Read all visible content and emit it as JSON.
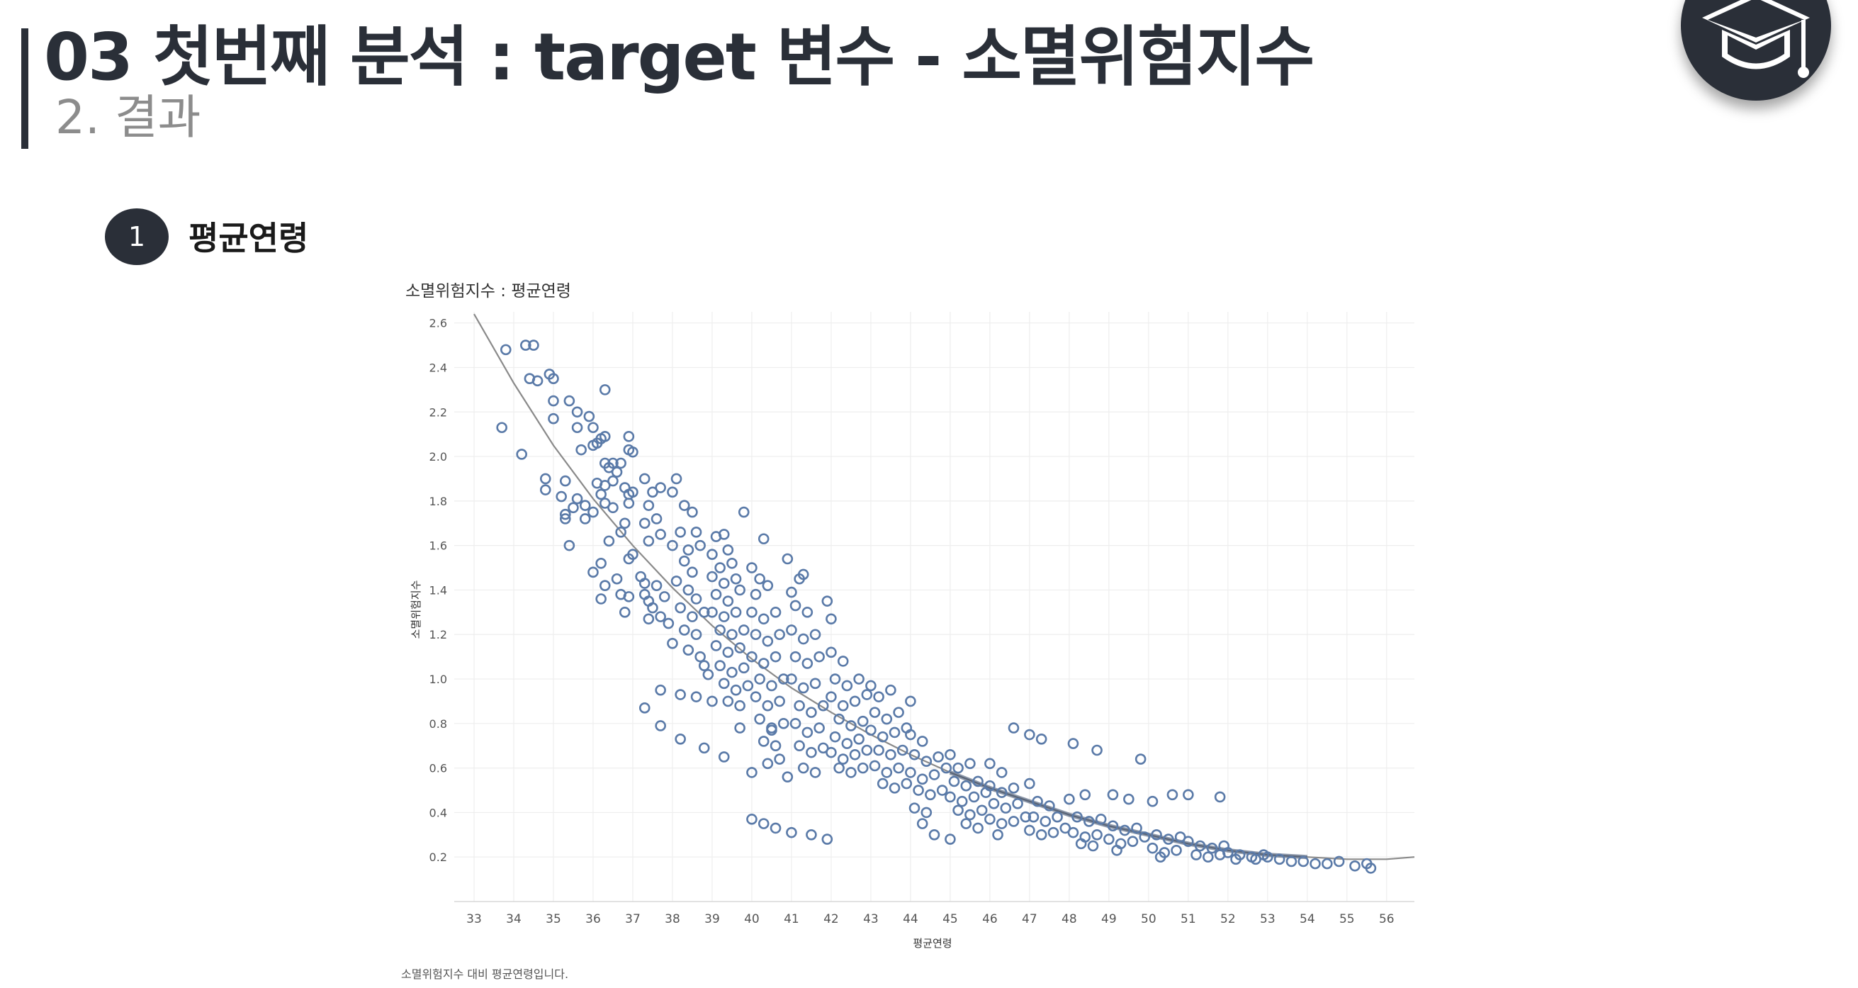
{
  "header": {
    "title": "03 첫번째 분석 : target 변수 - 소멸위험지수",
    "subtitle": "2. 결과"
  },
  "logo": {
    "icon": "graduation-cap-icon",
    "color": "#2a2f38"
  },
  "section": {
    "number": "1",
    "title": "평균연령"
  },
  "caption": "소멸위험지수 대비 평균연령입니다.",
  "colors": {
    "accent": "#2a2f38",
    "point": "#5a7aa8",
    "trend": "#8a8a8a",
    "grid": "#eeeeee"
  },
  "chart_data": {
    "type": "scatter",
    "title": "소멸위험지수 : 평균연령",
    "xlabel": "평균연령",
    "ylabel": "소멸위험지수",
    "xlim": [
      32.5,
      56.7
    ],
    "ylim": [
      0.0,
      2.65
    ],
    "x_ticks": [
      "33",
      "34",
      "35",
      "36",
      "37",
      "38",
      "39",
      "40",
      "41",
      "42",
      "43",
      "44",
      "45",
      "46",
      "47",
      "48",
      "49",
      "50",
      "51",
      "52",
      "53",
      "54",
      "55",
      "56"
    ],
    "y_ticks": [
      "0.2",
      "0.4",
      "0.6",
      "0.8",
      "1.0",
      "1.2",
      "1.4",
      "1.6",
      "1.8",
      "2.0",
      "2.2",
      "2.4",
      "2.6"
    ],
    "grid": true,
    "marker": "open-circle",
    "trend_line": {
      "type": "exponential",
      "points": [
        [
          33.0,
          2.64
        ],
        [
          34,
          2.33
        ],
        [
          35,
          2.05
        ],
        [
          36,
          1.81
        ],
        [
          37,
          1.6
        ],
        [
          38,
          1.41
        ],
        [
          39,
          1.24
        ],
        [
          40,
          1.09
        ],
        [
          41,
          0.96
        ],
        [
          42,
          0.85
        ],
        [
          43,
          0.75
        ],
        [
          44,
          0.66
        ],
        [
          45,
          0.58
        ],
        [
          46,
          0.51
        ],
        [
          47,
          0.45
        ],
        [
          48,
          0.39
        ],
        [
          49,
          0.34
        ],
        [
          50,
          0.3
        ],
        [
          51,
          0.26
        ],
        [
          52,
          0.23
        ],
        [
          53,
          0.21
        ],
        [
          54,
          0.2
        ],
        [
          55,
          0.19
        ],
        [
          56,
          0.19
        ],
        [
          56.7,
          0.2
        ]
      ]
    },
    "points": [
      [
        33.8,
        2.48
      ],
      [
        34.3,
        2.5
      ],
      [
        34.5,
        2.5
      ],
      [
        33.7,
        2.13
      ],
      [
        34.2,
        2.01
      ],
      [
        34.4,
        2.35
      ],
      [
        34.6,
        2.34
      ],
      [
        34.9,
        2.37
      ],
      [
        35.0,
        2.35
      ],
      [
        35.0,
        2.25
      ],
      [
        35.0,
        2.17
      ],
      [
        34.8,
        1.9
      ],
      [
        34.8,
        1.85
      ],
      [
        35.3,
        1.89
      ],
      [
        35.2,
        1.82
      ],
      [
        35.5,
        1.77
      ],
      [
        35.3,
        1.74
      ],
      [
        35.3,
        1.72
      ],
      [
        35.6,
        1.81
      ],
      [
        35.8,
        1.78
      ],
      [
        36.0,
        1.75
      ],
      [
        35.8,
        1.72
      ],
      [
        35.4,
        1.6
      ],
      [
        35.4,
        2.25
      ],
      [
        35.6,
        2.2
      ],
      [
        35.6,
        2.13
      ],
      [
        35.9,
        2.18
      ],
      [
        36.0,
        2.13
      ],
      [
        36.3,
        2.3
      ],
      [
        36.2,
        2.08
      ],
      [
        36.1,
        2.06
      ],
      [
        36.3,
        2.09
      ],
      [
        36.0,
        2.05
      ],
      [
        35.7,
        2.03
      ],
      [
        36.3,
        1.97
      ],
      [
        36.5,
        1.97
      ],
      [
        36.4,
        1.95
      ],
      [
        36.7,
        1.97
      ],
      [
        36.6,
        1.93
      ],
      [
        36.3,
        1.87
      ],
      [
        36.5,
        1.89
      ],
      [
        36.1,
        1.88
      ],
      [
        36.2,
        1.83
      ],
      [
        36.3,
        1.79
      ],
      [
        36.5,
        1.77
      ],
      [
        36.9,
        2.09
      ],
      [
        36.9,
        2.03
      ],
      [
        37.0,
        2.02
      ],
      [
        36.8,
        1.86
      ],
      [
        36.9,
        1.83
      ],
      [
        36.9,
        1.79
      ],
      [
        37.0,
        1.84
      ],
      [
        36.8,
        1.7
      ],
      [
        36.7,
        1.66
      ],
      [
        36.4,
        1.62
      ],
      [
        36.0,
        1.48
      ],
      [
        36.2,
        1.52
      ],
      [
        36.3,
        1.42
      ],
      [
        36.2,
        1.36
      ],
      [
        36.6,
        1.45
      ],
      [
        36.7,
        1.38
      ],
      [
        36.9,
        1.37
      ],
      [
        36.8,
        1.3
      ],
      [
        37.0,
        1.56
      ],
      [
        36.9,
        1.54
      ],
      [
        37.3,
        1.9
      ],
      [
        37.5,
        1.84
      ],
      [
        37.4,
        1.78
      ],
      [
        37.7,
        1.86
      ],
      [
        37.6,
        1.72
      ],
      [
        37.3,
        1.7
      ],
      [
        37.7,
        1.65
      ],
      [
        37.4,
        1.62
      ],
      [
        37.2,
        1.46
      ],
      [
        37.3,
        1.43
      ],
      [
        37.3,
        1.38
      ],
      [
        37.4,
        1.35
      ],
      [
        37.6,
        1.42
      ],
      [
        37.8,
        1.37
      ],
      [
        37.5,
        1.32
      ],
      [
        37.7,
        1.28
      ],
      [
        37.4,
        1.27
      ],
      [
        37.9,
        1.25
      ],
      [
        37.3,
        0.87
      ],
      [
        37.7,
        0.95
      ],
      [
        38.2,
        0.93
      ],
      [
        37.7,
        0.79
      ],
      [
        38.2,
        0.73
      ],
      [
        38.1,
        1.9
      ],
      [
        38.0,
        1.84
      ],
      [
        38.3,
        1.78
      ],
      [
        38.5,
        1.75
      ],
      [
        38.2,
        1.66
      ],
      [
        38.6,
        1.66
      ],
      [
        38.0,
        1.6
      ],
      [
        38.4,
        1.58
      ],
      [
        38.7,
        1.6
      ],
      [
        38.3,
        1.53
      ],
      [
        38.5,
        1.48
      ],
      [
        38.1,
        1.44
      ],
      [
        38.4,
        1.4
      ],
      [
        38.6,
        1.36
      ],
      [
        38.2,
        1.32
      ],
      [
        38.5,
        1.28
      ],
      [
        38.8,
        1.3
      ],
      [
        38.3,
        1.22
      ],
      [
        38.6,
        1.2
      ],
      [
        38.0,
        1.16
      ],
      [
        38.4,
        1.13
      ],
      [
        38.7,
        1.1
      ],
      [
        38.8,
        1.06
      ],
      [
        38.6,
        0.92
      ],
      [
        38.8,
        0.69
      ],
      [
        39.0,
        0.9
      ],
      [
        38.9,
        1.02
      ],
      [
        39.1,
        1.64
      ],
      [
        39.3,
        1.65
      ],
      [
        39.0,
        1.56
      ],
      [
        39.4,
        1.58
      ],
      [
        39.2,
        1.5
      ],
      [
        39.5,
        1.52
      ],
      [
        39.0,
        1.46
      ],
      [
        39.3,
        1.43
      ],
      [
        39.6,
        1.45
      ],
      [
        39.1,
        1.38
      ],
      [
        39.4,
        1.35
      ],
      [
        39.7,
        1.4
      ],
      [
        39.0,
        1.3
      ],
      [
        39.3,
        1.28
      ],
      [
        39.6,
        1.3
      ],
      [
        39.2,
        1.22
      ],
      [
        39.5,
        1.2
      ],
      [
        39.8,
        1.22
      ],
      [
        39.1,
        1.15
      ],
      [
        39.4,
        1.12
      ],
      [
        39.7,
        1.14
      ],
      [
        39.2,
        1.06
      ],
      [
        39.5,
        1.03
      ],
      [
        39.8,
        1.05
      ],
      [
        39.3,
        0.98
      ],
      [
        39.6,
        0.95
      ],
      [
        39.9,
        0.97
      ],
      [
        39.4,
        0.9
      ],
      [
        39.7,
        0.88
      ],
      [
        39.3,
        0.65
      ],
      [
        39.8,
        1.75
      ],
      [
        39.7,
        0.78
      ],
      [
        40.0,
        1.5
      ],
      [
        40.2,
        1.45
      ],
      [
        40.1,
        1.38
      ],
      [
        40.4,
        1.42
      ],
      [
        40.0,
        1.3
      ],
      [
        40.3,
        1.27
      ],
      [
        40.6,
        1.3
      ],
      [
        40.1,
        1.2
      ],
      [
        40.4,
        1.17
      ],
      [
        40.7,
        1.2
      ],
      [
        40.0,
        1.1
      ],
      [
        40.3,
        1.07
      ],
      [
        40.6,
        1.1
      ],
      [
        40.2,
        1.0
      ],
      [
        40.5,
        0.97
      ],
      [
        40.8,
        1.0
      ],
      [
        40.1,
        0.92
      ],
      [
        40.4,
        0.88
      ],
      [
        40.7,
        0.9
      ],
      [
        40.2,
        0.82
      ],
      [
        40.5,
        0.78
      ],
      [
        40.8,
        0.8
      ],
      [
        40.3,
        0.72
      ],
      [
        40.6,
        0.7
      ],
      [
        40.4,
        0.62
      ],
      [
        40.7,
        0.64
      ],
      [
        40.0,
        0.58
      ],
      [
        40.9,
        0.56
      ],
      [
        40.3,
        1.63
      ],
      [
        40.5,
        0.77
      ],
      [
        40.0,
        0.37
      ],
      [
        40.3,
        0.35
      ],
      [
        40.6,
        0.33
      ],
      [
        41.0,
        1.39
      ],
      [
        41.2,
        1.45
      ],
      [
        41.1,
        1.33
      ],
      [
        41.4,
        1.3
      ],
      [
        41.0,
        1.22
      ],
      [
        41.3,
        1.18
      ],
      [
        41.6,
        1.2
      ],
      [
        41.1,
        1.1
      ],
      [
        41.4,
        1.07
      ],
      [
        41.7,
        1.1
      ],
      [
        41.0,
        1.0
      ],
      [
        41.3,
        0.96
      ],
      [
        41.6,
        0.98
      ],
      [
        41.2,
        0.88
      ],
      [
        41.5,
        0.85
      ],
      [
        41.8,
        0.88
      ],
      [
        41.1,
        0.8
      ],
      [
        41.4,
        0.76
      ],
      [
        41.7,
        0.78
      ],
      [
        41.2,
        0.7
      ],
      [
        41.5,
        0.67
      ],
      [
        41.8,
        0.69
      ],
      [
        41.3,
        0.6
      ],
      [
        41.6,
        0.58
      ],
      [
        40.9,
        1.54
      ],
      [
        41.3,
        1.47
      ],
      [
        41.9,
        1.35
      ],
      [
        41.0,
        0.31
      ],
      [
        41.5,
        0.3
      ],
      [
        42.0,
        1.27
      ],
      [
        42.0,
        1.12
      ],
      [
        42.3,
        1.08
      ],
      [
        42.1,
        1.0
      ],
      [
        42.4,
        0.97
      ],
      [
        42.7,
        1.0
      ],
      [
        42.0,
        0.92
      ],
      [
        42.3,
        0.88
      ],
      [
        42.6,
        0.9
      ],
      [
        42.9,
        0.93
      ],
      [
        42.2,
        0.82
      ],
      [
        42.5,
        0.79
      ],
      [
        42.8,
        0.81
      ],
      [
        42.1,
        0.74
      ],
      [
        42.4,
        0.71
      ],
      [
        42.7,
        0.73
      ],
      [
        42.0,
        0.67
      ],
      [
        42.3,
        0.64
      ],
      [
        42.6,
        0.66
      ],
      [
        42.9,
        0.68
      ],
      [
        42.2,
        0.6
      ],
      [
        42.5,
        0.58
      ],
      [
        42.8,
        0.6
      ],
      [
        41.9,
        0.28
      ],
      [
        43.0,
        0.97
      ],
      [
        43.2,
        0.92
      ],
      [
        43.5,
        0.95
      ],
      [
        43.1,
        0.85
      ],
      [
        43.4,
        0.82
      ],
      [
        43.7,
        0.85
      ],
      [
        43.0,
        0.77
      ],
      [
        43.3,
        0.74
      ],
      [
        43.6,
        0.76
      ],
      [
        43.9,
        0.78
      ],
      [
        43.2,
        0.68
      ],
      [
        43.5,
        0.66
      ],
      [
        43.8,
        0.68
      ],
      [
        43.1,
        0.61
      ],
      [
        43.4,
        0.58
      ],
      [
        43.7,
        0.6
      ],
      [
        43.3,
        0.53
      ],
      [
        43.6,
        0.51
      ],
      [
        43.9,
        0.53
      ],
      [
        44.0,
        0.9
      ],
      [
        44.0,
        0.75
      ],
      [
        44.3,
        0.72
      ],
      [
        44.1,
        0.66
      ],
      [
        44.4,
        0.63
      ],
      [
        44.7,
        0.65
      ],
      [
        44.0,
        0.58
      ],
      [
        44.3,
        0.55
      ],
      [
        44.6,
        0.57
      ],
      [
        44.9,
        0.6
      ],
      [
        44.2,
        0.5
      ],
      [
        44.5,
        0.48
      ],
      [
        44.8,
        0.5
      ],
      [
        44.1,
        0.42
      ],
      [
        44.4,
        0.4
      ],
      [
        44.3,
        0.35
      ],
      [
        44.6,
        0.3
      ],
      [
        45.0,
        0.28
      ],
      [
        45.0,
        0.66
      ],
      [
        45.2,
        0.6
      ],
      [
        45.5,
        0.62
      ],
      [
        45.1,
        0.54
      ],
      [
        45.4,
        0.52
      ],
      [
        45.7,
        0.54
      ],
      [
        45.0,
        0.47
      ],
      [
        45.3,
        0.45
      ],
      [
        45.6,
        0.47
      ],
      [
        45.9,
        0.49
      ],
      [
        45.2,
        0.41
      ],
      [
        45.5,
        0.39
      ],
      [
        45.8,
        0.41
      ],
      [
        45.4,
        0.35
      ],
      [
        45.7,
        0.33
      ],
      [
        46.0,
        0.62
      ],
      [
        46.3,
        0.58
      ],
      [
        46.0,
        0.52
      ],
      [
        46.3,
        0.49
      ],
      [
        46.6,
        0.51
      ],
      [
        46.1,
        0.44
      ],
      [
        46.4,
        0.42
      ],
      [
        46.7,
        0.44
      ],
      [
        46.0,
        0.37
      ],
      [
        46.3,
        0.35
      ],
      [
        46.6,
        0.36
      ],
      [
        46.9,
        0.38
      ],
      [
        46.2,
        0.3
      ],
      [
        46.6,
        0.78
      ],
      [
        47.0,
        0.75
      ],
      [
        47.3,
        0.73
      ],
      [
        47.0,
        0.53
      ],
      [
        47.2,
        0.45
      ],
      [
        47.5,
        0.43
      ],
      [
        47.1,
        0.38
      ],
      [
        47.4,
        0.36
      ],
      [
        47.7,
        0.38
      ],
      [
        47.0,
        0.32
      ],
      [
        47.3,
        0.3
      ],
      [
        47.6,
        0.31
      ],
      [
        47.9,
        0.33
      ],
      [
        48.1,
        0.71
      ],
      [
        48.0,
        0.46
      ],
      [
        48.4,
        0.48
      ],
      [
        48.2,
        0.38
      ],
      [
        48.5,
        0.36
      ],
      [
        48.8,
        0.37
      ],
      [
        48.1,
        0.31
      ],
      [
        48.4,
        0.29
      ],
      [
        48.7,
        0.3
      ],
      [
        48.3,
        0.26
      ],
      [
        48.6,
        0.25
      ],
      [
        48.7,
        0.68
      ],
      [
        49.1,
        0.48
      ],
      [
        49.5,
        0.46
      ],
      [
        49.1,
        0.34
      ],
      [
        49.4,
        0.32
      ],
      [
        49.7,
        0.33
      ],
      [
        49.0,
        0.28
      ],
      [
        49.3,
        0.26
      ],
      [
        49.6,
        0.27
      ],
      [
        49.9,
        0.29
      ],
      [
        49.2,
        0.23
      ],
      [
        49.8,
        0.64
      ],
      [
        50.1,
        0.45
      ],
      [
        50.6,
        0.48
      ],
      [
        50.2,
        0.3
      ],
      [
        50.5,
        0.28
      ],
      [
        50.8,
        0.29
      ],
      [
        50.1,
        0.24
      ],
      [
        50.4,
        0.22
      ],
      [
        50.7,
        0.23
      ],
      [
        50.3,
        0.2
      ],
      [
        51.0,
        0.48
      ],
      [
        51.0,
        0.27
      ],
      [
        51.3,
        0.25
      ],
      [
        51.6,
        0.24
      ],
      [
        51.9,
        0.25
      ],
      [
        51.2,
        0.21
      ],
      [
        51.5,
        0.2
      ],
      [
        51.8,
        0.21
      ],
      [
        51.8,
        0.47
      ],
      [
        52.0,
        0.22
      ],
      [
        52.3,
        0.21
      ],
      [
        52.6,
        0.2
      ],
      [
        52.9,
        0.21
      ],
      [
        52.2,
        0.19
      ],
      [
        52.7,
        0.19
      ],
      [
        53.0,
        0.2
      ],
      [
        53.3,
        0.19
      ],
      [
        53.6,
        0.18
      ],
      [
        53.9,
        0.18
      ],
      [
        54.2,
        0.17
      ],
      [
        54.5,
        0.17
      ],
      [
        54.8,
        0.18
      ],
      [
        55.2,
        0.16
      ],
      [
        55.5,
        0.17
      ],
      [
        55.6,
        0.15
      ]
    ]
  }
}
